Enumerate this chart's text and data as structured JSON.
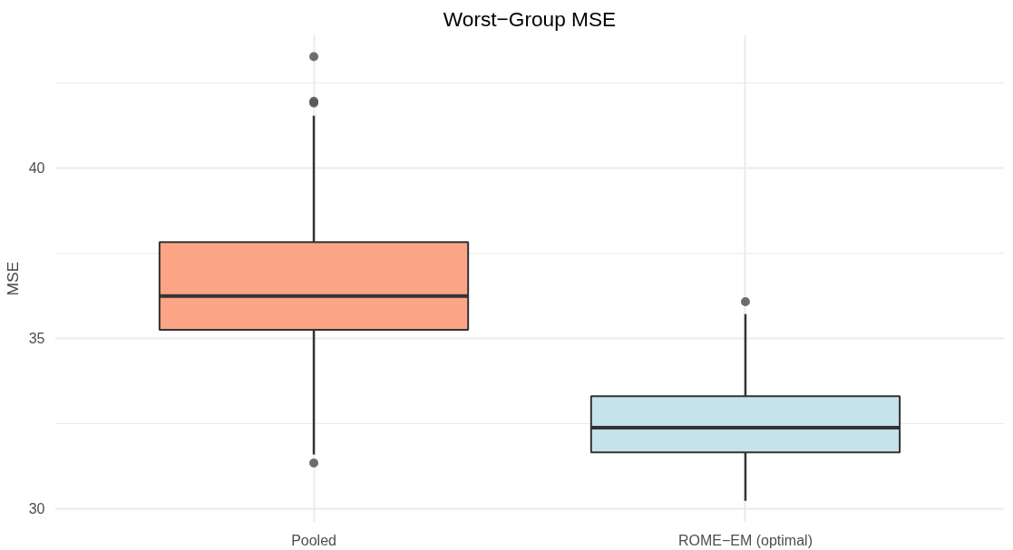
{
  "chart_data": {
    "type": "box",
    "title": "Worst−Group MSE",
    "ylabel": "MSE",
    "categories": [
      "Pooled",
      "ROME−EM (optimal)"
    ],
    "boxes": [
      {
        "low": 31.59,
        "q1": 35.25,
        "median": 36.24,
        "q3": 37.82,
        "high": 41.53,
        "outliers": [
          31.34,
          41.9,
          41.95,
          43.26
        ]
      },
      {
        "low": 30.23,
        "q1": 31.65,
        "median": 32.38,
        "q3": 33.3,
        "high": 35.71,
        "outliers": [
          36.07
        ]
      }
    ],
    "colors": [
      "#fca486",
      "#c6e2eb"
    ],
    "ylim": [
      29.6,
      43.9
    ],
    "yticks": [
      30,
      35,
      40
    ],
    "grid": true
  }
}
